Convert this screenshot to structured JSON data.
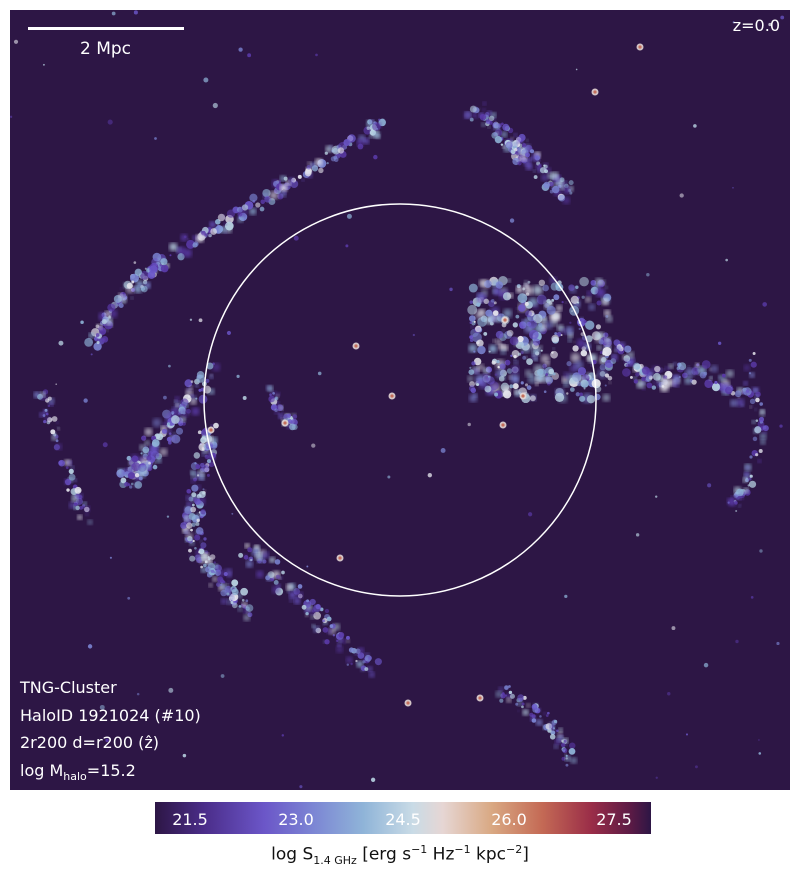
{
  "scale_bar": {
    "label": "2 Mpc"
  },
  "redshift_label": "z=0.0",
  "info": {
    "line1": "TNG-Cluster",
    "line2": "HaloID 1921024 (#10)",
    "line3": "2r200 d=r200 (ẑ)",
    "mass_prefix": "log M",
    "mass_sub": "halo",
    "mass_value": "=15.2"
  },
  "colorbar": {
    "ticks": [
      "21.5",
      "23.0",
      "24.5",
      "26.0",
      "27.5"
    ],
    "label_prefix": "log S",
    "label_sub": "1.4 GHz",
    "label_mid1": " [erg s",
    "label_sup1": "−1",
    "label_mid2": " Hz",
    "label_sup2": "−1",
    "label_mid3": " kpc",
    "label_sup3": "−2",
    "label_end": "]"
  },
  "colors": {
    "background": "#2d1645",
    "overlay": "#ffffff",
    "colormap": [
      "#2d1645",
      "#4b2d8a",
      "#6b56c8",
      "#8fb4d8",
      "#e6d6d4",
      "#d9a882",
      "#c46a55",
      "#9a2d48",
      "#2d1645"
    ]
  }
}
